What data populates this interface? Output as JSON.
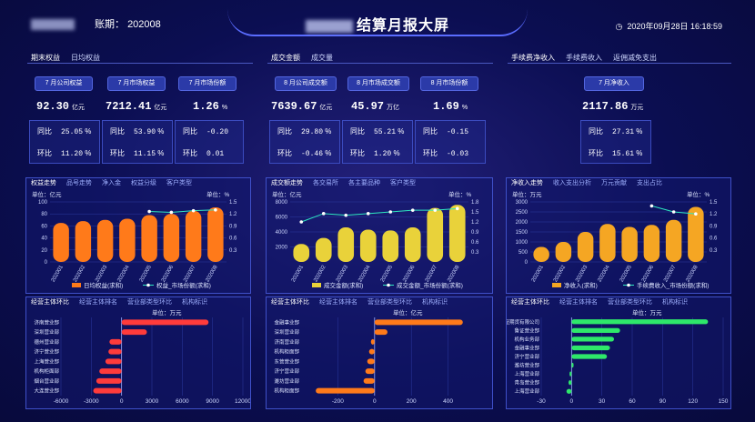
{
  "header": {
    "period_label": "账期：",
    "period": "202008",
    "title": "结算月报大屏",
    "datetime": "2020年09月28日 16:18:59"
  },
  "sections": [
    {
      "tabs": [
        "期末权益",
        "日均权益"
      ],
      "kpis": [
        {
          "label": "7 月公司权益",
          "value": "92.30",
          "unit": "亿元"
        },
        {
          "label": "7 月市场权益",
          "value": "7212.41",
          "unit": "亿元"
        },
        {
          "label": "7 月市场份额",
          "value": "1.26",
          "unit": "%"
        }
      ],
      "cmp": [
        {
          "yoy": "25.05",
          "yoy_unit": "%",
          "mom": "11.20",
          "mom_unit": "%"
        },
        {
          "yoy": "53.90",
          "yoy_unit": "%",
          "mom": "11.15",
          "mom_unit": "%"
        },
        {
          "yoy": "-0.20",
          "yoy_unit": "",
          "mom": "0.01",
          "mom_unit": ""
        }
      ]
    },
    {
      "tabs": [
        "成交金额",
        "成交量"
      ],
      "kpis": [
        {
          "label": "8 月公司成交额",
          "value": "7639.67",
          "unit": "亿元"
        },
        {
          "label": "8 月市场成交额",
          "value": "45.97",
          "unit": "万亿"
        },
        {
          "label": "8 月市场份额",
          "value": "1.69",
          "unit": "%"
        }
      ],
      "cmp": [
        {
          "yoy": "29.80",
          "yoy_unit": "%",
          "mom": "-0.46",
          "mom_unit": "%"
        },
        {
          "yoy": "55.21",
          "yoy_unit": "%",
          "mom": "1.20",
          "mom_unit": "%"
        },
        {
          "yoy": "-0.15",
          "yoy_unit": "",
          "mom": "-0.03",
          "mom_unit": ""
        }
      ]
    },
    {
      "tabs": [
        "手续费净收入",
        "手续费收入",
        "返佣减免支出"
      ],
      "kpis": [
        {
          "label": "7 月净收入",
          "value": "2117.86",
          "unit": "万元"
        }
      ],
      "cmp": [
        {
          "yoy": "27.31",
          "yoy_unit": "%",
          "mom": "15.61",
          "mom_unit": "%"
        }
      ]
    }
  ],
  "labels": {
    "yoy": "同比",
    "mom": "环比",
    "unit_left_prefix": "单位："
  },
  "trend_tabs": [
    [
      "权益走势",
      "品号走势",
      "净入金",
      "权益分级",
      "客户类型"
    ],
    [
      "成交额走势",
      "各交易所",
      "各主要品种",
      "客户类型"
    ],
    [
      "净收入走势",
      "收入支出分析",
      "万元贡献",
      "支出占比"
    ]
  ],
  "rank_tabs": [
    [
      "经营主体环比",
      "经营主体排名",
      "营业部类型环比",
      "机构标识"
    ],
    [
      "经营主体环比",
      "经营主体排名",
      "营业部类型环比",
      "机构标识"
    ],
    [
      "经营主体环比",
      "经营主体排名",
      "营业部类型环比",
      "机构标识"
    ]
  ],
  "chart_data": [
    {
      "type": "bar",
      "title": "权益走势",
      "unit_left": "亿元",
      "unit_right": "%",
      "categories": [
        "202001",
        "202002",
        "202003",
        "202004",
        "202005",
        "202006",
        "202007",
        "202008"
      ],
      "series": [
        {
          "name": "日均权益(求和)",
          "values": [
            65,
            68,
            70,
            72,
            78,
            80,
            85,
            91
          ]
        },
        {
          "name": "权益_市场份额(求和)",
          "type": "line",
          "values": [
            null,
            null,
            null,
            null,
            1.26,
            1.24,
            1.28,
            1.3
          ]
        }
      ],
      "ylim": [
        0,
        100
      ],
      "yticks": [
        0,
        20,
        40,
        60,
        80,
        100
      ],
      "y2lim": [
        0,
        1.5
      ],
      "y2ticks": [
        0.3,
        0.6,
        0.9,
        1.2,
        1.5
      ],
      "bar_color": "#ff7a1a"
    },
    {
      "type": "bar",
      "title": "成交额走势",
      "unit_left": "亿元",
      "unit_right": "%",
      "categories": [
        "202001",
        "202002",
        "202003",
        "202004",
        "202005",
        "202006",
        "202007",
        "202008"
      ],
      "series": [
        {
          "name": "成交金额(求和)",
          "values": [
            2400,
            3200,
            4600,
            4300,
            4200,
            4600,
            7200,
            7600
          ]
        },
        {
          "name": "成交金额_市场份额(求和)",
          "type": "line",
          "values": [
            1.2,
            1.45,
            1.4,
            1.45,
            1.5,
            1.55,
            1.55,
            1.6
          ]
        }
      ],
      "ylim": [
        0,
        8000
      ],
      "yticks": [
        2000,
        4000,
        6000,
        8000
      ],
      "y2lim": [
        0,
        1.8
      ],
      "y2ticks": [
        0.3,
        0.6,
        0.9,
        1.2,
        1.5,
        1.8
      ],
      "bar_color": "#e9d23a"
    },
    {
      "type": "bar",
      "title": "净收入走势",
      "unit_left": "万元",
      "unit_right": "%",
      "categories": [
        "202001",
        "202002",
        "202003",
        "202004",
        "202005",
        "202006",
        "202007",
        "202008"
      ],
      "series": [
        {
          "name": "净收入(求和)",
          "values": [
            750,
            1000,
            1500,
            1900,
            1750,
            1850,
            2100,
            2750
          ]
        },
        {
          "name": "手续费收入_市场份额(求和)",
          "type": "line",
          "values": [
            null,
            null,
            null,
            null,
            null,
            1.4,
            1.25,
            1.2
          ]
        }
      ],
      "ylim": [
        0,
        3000
      ],
      "yticks": [
        0,
        500,
        1000,
        1500,
        2000,
        2500,
        3000
      ],
      "y2lim": [
        0,
        1.5
      ],
      "y2ticks": [
        0.3,
        0.6,
        0.9,
        1.2,
        1.5
      ],
      "bar_color": "#f5a623"
    },
    {
      "type": "bar",
      "orientation": "horizontal",
      "unit": "万元",
      "categories": [
        "济南营业部",
        "深圳营业部",
        "德州营业部",
        "济宁营业部",
        "上海营业部",
        "机构柜面部",
        "烟台营业部",
        "大连营业部"
      ],
      "values": [
        8600,
        2500,
        -1200,
        -1300,
        -1600,
        -2200,
        -2500,
        -2800
      ],
      "xlim": [
        -6000,
        12000
      ],
      "xticks": [
        -6000,
        -3000,
        0,
        3000,
        6000,
        9000,
        12000
      ],
      "bar_color": "#ff3b3b"
    },
    {
      "type": "bar",
      "orientation": "horizontal",
      "unit": "亿元",
      "categories": [
        "金融事业部",
        "深圳营业部",
        "济南营业部",
        "机构柜面部",
        "东营营业部",
        "济宁营业部",
        "潍坊营业部",
        "机构柜面部"
      ],
      "values": [
        480,
        70,
        -20,
        -30,
        -40,
        -50,
        -60,
        -320
      ],
      "xlim": [
        -400,
        600
      ],
      "xticks": [
        -200,
        0,
        200,
        400
      ],
      "bar_color": "#ff7a1a"
    },
    {
      "type": "bar",
      "orientation": "horizontal",
      "unit": "万元",
      "categories": [
        "鲁证期货有限公司",
        "鲁证营业部",
        "机构业务部",
        "金融事业部",
        "济宁营业部",
        "潍坊营业部",
        "上海营业部",
        "青岛营业部",
        "上海营业部"
      ],
      "values": [
        135,
        48,
        42,
        38,
        35,
        2,
        -2,
        -3,
        -5
      ],
      "xlim": [
        -30,
        150
      ],
      "xticks": [
        -30,
        0,
        30,
        60,
        90,
        120,
        150
      ],
      "bar_color": "#2ee86a"
    }
  ]
}
